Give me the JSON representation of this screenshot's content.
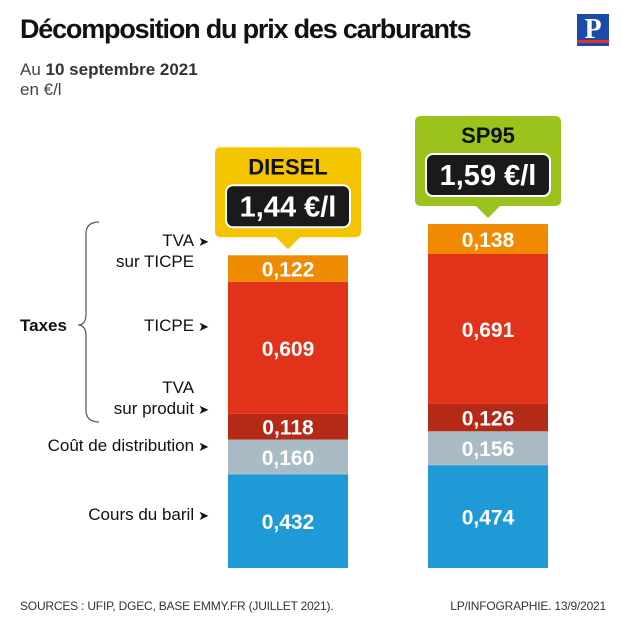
{
  "title": "Décomposition du prix des carburants",
  "logo": "P",
  "subtitle": {
    "prefix": "Au",
    "date": "10 septembre 2021",
    "unit": "en €/l"
  },
  "taxes_label": "Taxes",
  "footer": {
    "sources": "SOURCES : UFIP, DGEC, BASE EMMY.FR (JUILLET 2021).",
    "credit": "LP/INFOGRAPHIE.  13/9/2021"
  },
  "colors": {
    "cours_du_baril": "#1e9ad6",
    "cout_de_distribution": "#a9bcc6",
    "tva_sur_produit": "#b52a16",
    "ticpe": "#e3321a",
    "tva_sur_ticpe": "#f08a00",
    "diesel_badge": "#f5c400",
    "sp95_badge": "#9bc31c",
    "price_box": "#1a1a1a"
  },
  "chart_data": {
    "type": "bar",
    "stacked": true,
    "categories": [
      "DIESEL",
      "SP95"
    ],
    "totals": [
      "1,44 €/l",
      "1,59 €/l"
    ],
    "series": [
      {
        "name": "Cours du baril",
        "values": [
          0.432,
          0.474
        ],
        "labels": [
          "0,432",
          "0,474"
        ]
      },
      {
        "name": "Coût de distribution",
        "values": [
          0.16,
          0.156
        ],
        "labels": [
          "0,160",
          "0,156"
        ]
      },
      {
        "name": "TVA sur produit",
        "values": [
          0.118,
          0.126
        ],
        "labels": [
          "0,118",
          "0,126"
        ]
      },
      {
        "name": "TICPE",
        "values": [
          0.609,
          0.691
        ],
        "labels": [
          "0,609",
          "0,691"
        ]
      },
      {
        "name": "TVA sur TICPE",
        "values": [
          0.122,
          0.138
        ],
        "labels": [
          "0,122",
          "0,138"
        ]
      }
    ],
    "row_labels": {
      "tva_ticpe": [
        "TVA",
        "sur TICPE"
      ],
      "ticpe": "TICPE",
      "tva_produit": [
        "TVA",
        "sur produit"
      ],
      "distribution": "Coût de distribution",
      "baril": "Cours du baril"
    }
  }
}
